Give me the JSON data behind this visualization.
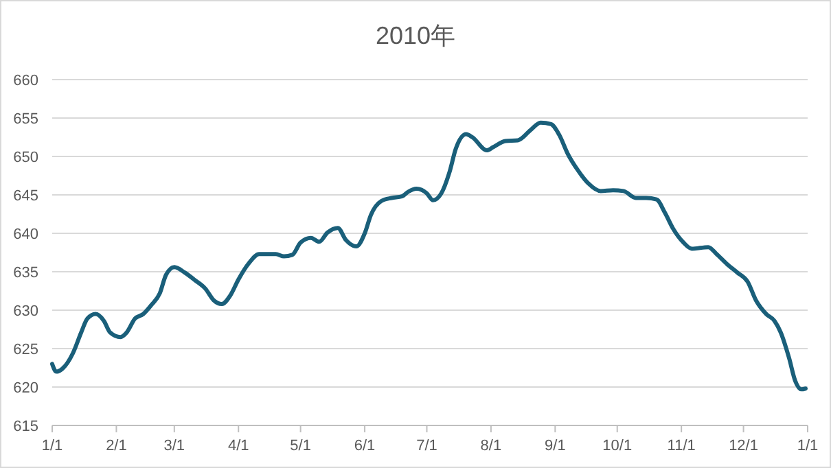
{
  "chart_data": {
    "type": "line",
    "title": "2010年",
    "x": [
      "2010-01-01",
      "2010-01-03",
      "2010-01-06",
      "2010-01-11",
      "2010-01-15",
      "2010-01-18",
      "2010-01-22",
      "2010-01-26",
      "2010-01-29",
      "2010-02-03",
      "2010-02-06",
      "2010-02-10",
      "2010-02-14",
      "2010-02-18",
      "2010-02-22",
      "2010-02-25",
      "2010-03-01",
      "2010-03-06",
      "2010-03-11",
      "2010-03-16",
      "2010-03-20",
      "2010-03-24",
      "2010-03-28",
      "2010-04-01",
      "2010-04-06",
      "2010-04-11",
      "2010-04-19",
      "2010-04-23",
      "2010-04-27",
      "2010-05-01",
      "2010-05-06",
      "2010-05-10",
      "2010-05-14",
      "2010-05-19",
      "2010-05-23",
      "2010-05-28",
      "2010-06-01",
      "2010-06-04",
      "2010-06-09",
      "2010-06-14",
      "2010-06-19",
      "2010-06-22",
      "2010-06-26",
      "2010-07-01",
      "2010-07-04",
      "2010-07-08",
      "2010-07-12",
      "2010-07-15",
      "2010-07-20",
      "2010-07-23",
      "2010-07-30",
      "2010-08-02",
      "2010-08-08",
      "2010-08-14",
      "2010-08-20",
      "2010-08-25",
      "2010-08-30",
      "2010-09-03",
      "2010-09-07",
      "2010-09-12",
      "2010-09-17",
      "2010-09-23",
      "2010-09-29",
      "2010-10-04",
      "2010-10-10",
      "2010-10-15",
      "2010-10-20",
      "2010-10-24",
      "2010-10-28",
      "2010-11-02",
      "2010-11-06",
      "2010-11-14",
      "2010-11-18",
      "2010-11-23",
      "2010-11-28",
      "2010-12-03",
      "2010-12-07",
      "2010-12-12",
      "2010-12-16",
      "2010-12-19",
      "2010-12-23",
      "2010-12-26",
      "2010-12-29",
      "2010-12-31"
    ],
    "series": [
      {
        "color": "#1a5f7a",
        "values": [
          623.0,
          622.0,
          622.4,
          624.4,
          627.1,
          628.9,
          629.5,
          628.6,
          627.1,
          626.5,
          627.1,
          628.9,
          629.5,
          630.7,
          632.2,
          634.6,
          635.6,
          634.9,
          633.9,
          632.8,
          631.3,
          630.8,
          631.9,
          634.0,
          636.1,
          637.3,
          637.3,
          637.0,
          637.2,
          638.8,
          639.4,
          638.9,
          640.1,
          640.7,
          639.1,
          638.3,
          640.0,
          642.4,
          644.2,
          644.6,
          644.8,
          645.4,
          645.8,
          645.2,
          644.3,
          645.2,
          648.0,
          651.0,
          652.9,
          652.5,
          650.8,
          651.2,
          652.0,
          652.1,
          653.4,
          654.4,
          654.2,
          652.8,
          650.4,
          648.2,
          646.5,
          645.5,
          645.6,
          645.5,
          644.6,
          644.6,
          644.4,
          642.7,
          640.6,
          638.8,
          638.0,
          638.2,
          637.3,
          636.0,
          634.9,
          633.7,
          631.3,
          629.5,
          628.6,
          627.1,
          623.8,
          620.8,
          619.7,
          619.8
        ]
      }
    ],
    "xlim": [
      "2010-01-01",
      "2011-01-01"
    ],
    "xticks": [
      {
        "value": "2010-01-01",
        "label": "1/1"
      },
      {
        "value": "2010-02-01",
        "label": "2/1"
      },
      {
        "value": "2010-03-01",
        "label": "3/1"
      },
      {
        "value": "2010-04-01",
        "label": "4/1"
      },
      {
        "value": "2010-05-01",
        "label": "5/1"
      },
      {
        "value": "2010-06-01",
        "label": "6/1"
      },
      {
        "value": "2010-07-01",
        "label": "7/1"
      },
      {
        "value": "2010-08-01",
        "label": "8/1"
      },
      {
        "value": "2010-09-01",
        "label": "9/1"
      },
      {
        "value": "2010-10-01",
        "label": "10/1"
      },
      {
        "value": "2010-11-01",
        "label": "11/1"
      },
      {
        "value": "2010-12-01",
        "label": "12/1"
      },
      {
        "value": "2011-01-01",
        "label": "1/1"
      }
    ],
    "ylim": [
      615,
      660
    ],
    "yticks": [
      615,
      620,
      625,
      630,
      635,
      640,
      645,
      650,
      655,
      660
    ],
    "grid": "y"
  }
}
